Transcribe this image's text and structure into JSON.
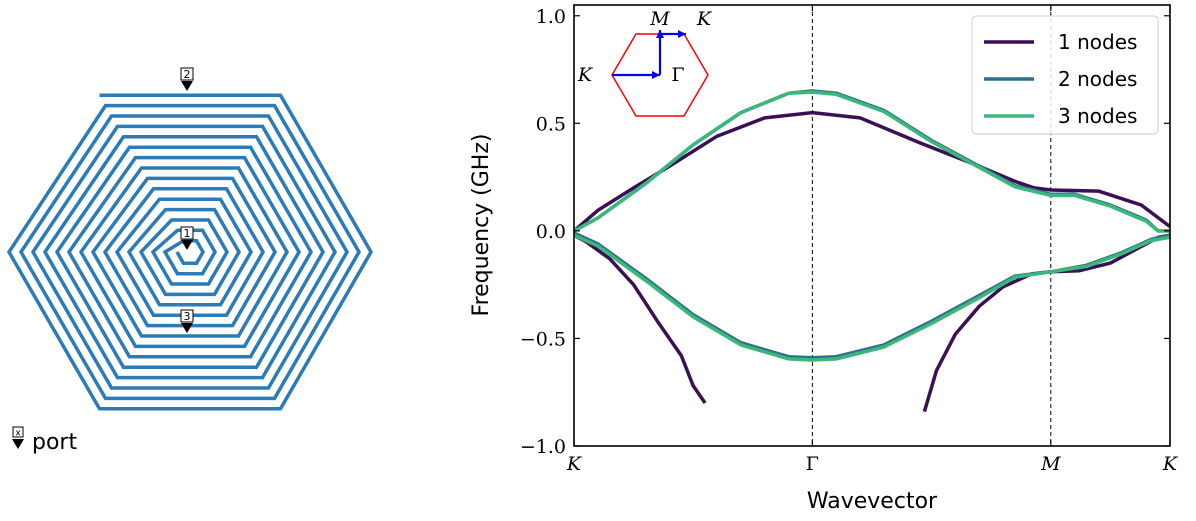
{
  "spiral_panel": {
    "ports": [
      {
        "label": "1"
      },
      {
        "label": "2"
      },
      {
        "label": "3"
      }
    ],
    "legend": {
      "marker_label": "x",
      "text": "port"
    },
    "line_color": "#2b7bb9"
  },
  "chart_data": {
    "type": "line",
    "xlabel": "Wavevector",
    "ylabel": "Frequency (GHz)",
    "ylim": [
      -1.0,
      1.05
    ],
    "y_ticks": [
      {
        "value": 1.0,
        "label": "1.0"
      },
      {
        "value": 0.5,
        "label": "0.5"
      },
      {
        "value": 0.0,
        "label": "0.0"
      },
      {
        "value": -0.5,
        "label": "−0.5"
      },
      {
        "value": -1.0,
        "label": "−1.0"
      }
    ],
    "x_ticks": [
      {
        "value": 0,
        "label": "K"
      },
      {
        "value": 1,
        "label": "Γ"
      },
      {
        "value": 2,
        "label": "M"
      },
      {
        "value": 2.5,
        "label": "K"
      }
    ],
    "xlim": [
      0,
      2.5
    ],
    "grid": false,
    "vertical_lines_at": [
      1,
      2
    ],
    "legend_position": "top-right",
    "series": [
      {
        "name": "1 nodes",
        "color": "#3b0f55",
        "bands": [
          [
            [
              0,
              0
            ],
            [
              0.1,
              0.095
            ],
            [
              0.25,
              0.2
            ],
            [
              0.4,
              0.3
            ],
            [
              0.6,
              0.44
            ],
            [
              0.8,
              0.525
            ],
            [
              1,
              0.55
            ],
            [
              1.2,
              0.525
            ],
            [
              1.45,
              0.41
            ],
            [
              1.7,
              0.3
            ],
            [
              1.85,
              0.23
            ],
            [
              1.93,
              0.2
            ],
            [
              2,
              0.19
            ],
            [
              2.2,
              0.185
            ],
            [
              2.38,
              0.12
            ],
            [
              2.5,
              0.02
            ]
          ],
          [
            [
              0,
              -0.02
            ],
            [
              0.05,
              -0.05
            ],
            [
              0.15,
              -0.13
            ],
            [
              0.25,
              -0.25
            ],
            [
              0.35,
              -0.42
            ],
            [
              0.45,
              -0.58
            ],
            [
              0.5,
              -0.72
            ],
            [
              0.55,
              -0.8
            ]
          ],
          [
            [
              1.47,
              -0.84
            ],
            [
              1.52,
              -0.65
            ],
            [
              1.6,
              -0.48
            ],
            [
              1.7,
              -0.35
            ],
            [
              1.8,
              -0.26
            ],
            [
              1.92,
              -0.2
            ],
            [
              2,
              -0.19
            ],
            [
              2.12,
              -0.185
            ],
            [
              2.25,
              -0.15
            ],
            [
              2.4,
              -0.06
            ],
            [
              2.45,
              -0.03
            ],
            [
              2.5,
              -0.02
            ]
          ]
        ]
      },
      {
        "name": "2 nodes",
        "color": "#2e6f8e",
        "bands": [
          [
            [
              0,
              0
            ],
            [
              0.1,
              0.06
            ],
            [
              0.3,
              0.22
            ],
            [
              0.5,
              0.4
            ],
            [
              0.7,
              0.55
            ],
            [
              0.9,
              0.64
            ],
            [
              1,
              0.65
            ],
            [
              1.1,
              0.64
            ],
            [
              1.3,
              0.56
            ],
            [
              1.5,
              0.42
            ],
            [
              1.7,
              0.3
            ],
            [
              1.85,
              0.21
            ],
            [
              2,
              0.17
            ],
            [
              2.1,
              0.17
            ],
            [
              2.25,
              0.12
            ],
            [
              2.4,
              0.05
            ],
            [
              2.45,
              0
            ],
            [
              2.5,
              0
            ]
          ],
          [
            [
              0,
              -0.01
            ],
            [
              0.1,
              -0.06
            ],
            [
              0.3,
              -0.22
            ],
            [
              0.5,
              -0.39
            ],
            [
              0.7,
              -0.52
            ],
            [
              0.9,
              -0.585
            ],
            [
              1,
              -0.59
            ],
            [
              1.1,
              -0.585
            ],
            [
              1.3,
              -0.53
            ],
            [
              1.5,
              -0.42
            ],
            [
              1.7,
              -0.3
            ],
            [
              1.85,
              -0.21
            ],
            [
              2,
              -0.19
            ],
            [
              2.15,
              -0.16
            ],
            [
              2.3,
              -0.1
            ],
            [
              2.42,
              -0.04
            ],
            [
              2.5,
              -0.02
            ]
          ]
        ]
      },
      {
        "name": "3 nodes",
        "color": "#3ab87a",
        "bands": [
          [
            [
              0,
              0
            ],
            [
              0.1,
              0.06
            ],
            [
              0.3,
              0.22
            ],
            [
              0.5,
              0.4
            ],
            [
              0.7,
              0.55
            ],
            [
              0.9,
              0.64
            ],
            [
              1,
              0.645
            ],
            [
              1.1,
              0.635
            ],
            [
              1.3,
              0.555
            ],
            [
              1.5,
              0.415
            ],
            [
              1.7,
              0.295
            ],
            [
              1.85,
              0.205
            ],
            [
              2,
              0.165
            ],
            [
              2.1,
              0.165
            ],
            [
              2.25,
              0.115
            ],
            [
              2.4,
              0.045
            ],
            [
              2.45,
              0
            ],
            [
              2.5,
              0
            ]
          ],
          [
            [
              0,
              -0.02
            ],
            [
              0.1,
              -0.07
            ],
            [
              0.3,
              -0.23
            ],
            [
              0.5,
              -0.4
            ],
            [
              0.7,
              -0.53
            ],
            [
              0.9,
              -0.595
            ],
            [
              1,
              -0.6
            ],
            [
              1.1,
              -0.595
            ],
            [
              1.3,
              -0.54
            ],
            [
              1.5,
              -0.43
            ],
            [
              1.7,
              -0.31
            ],
            [
              1.85,
              -0.215
            ],
            [
              2,
              -0.19
            ],
            [
              2.15,
              -0.165
            ],
            [
              2.3,
              -0.105
            ],
            [
              2.42,
              -0.045
            ],
            [
              2.5,
              -0.03
            ]
          ]
        ]
      }
    ],
    "inset": {
      "labels": {
        "left_k": "K",
        "gamma": "Γ",
        "m": "M",
        "top_k": "K"
      },
      "hexagon_color": "#ff0000",
      "path_color": "#0000ff"
    }
  }
}
